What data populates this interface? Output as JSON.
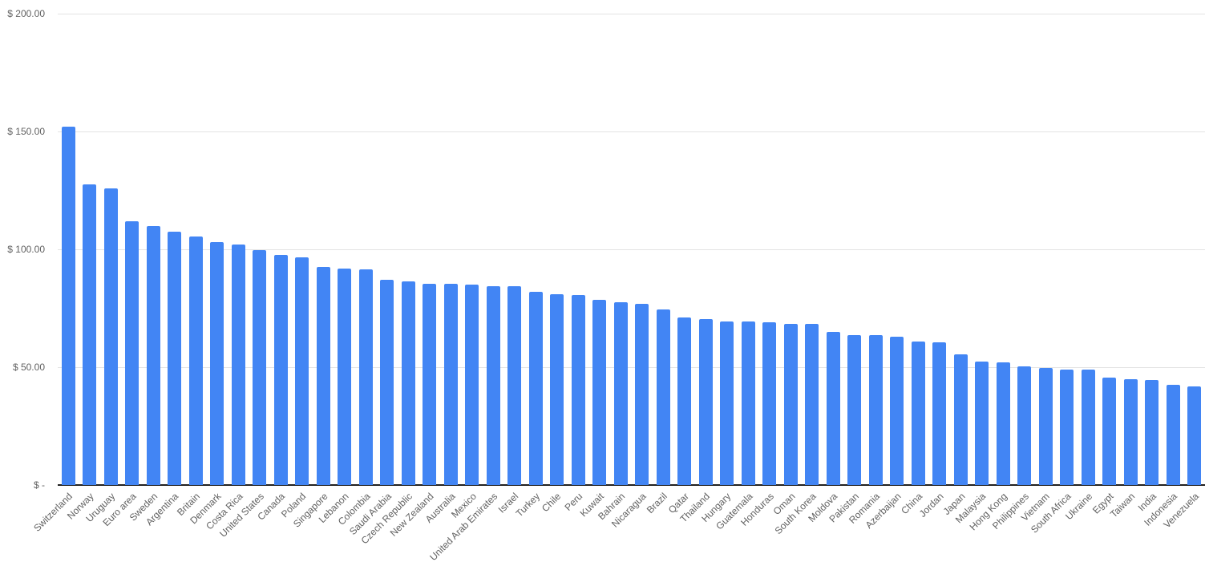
{
  "chart": {
    "background_color": "#ffffff",
    "bar_color": "#4285f4",
    "gridline_color": "#e3e3e3",
    "axis_line_color": "#212121",
    "tick_text_color": "#616161",
    "y_axis_ticks": [
      {
        "label": "$ 200.00",
        "value": 200
      },
      {
        "label": "$ 150.00",
        "value": 150
      },
      {
        "label": "$ 100.00",
        "value": 100
      },
      {
        "label": "$ 50.00",
        "value": 50
      },
      {
        "label": "$ -",
        "value": 0
      }
    ]
  },
  "chart_data": {
    "type": "bar",
    "title": "",
    "xlabel": "",
    "ylabel": "",
    "ylim": [
      0,
      200
    ],
    "grid": true,
    "legend_position": "none",
    "y_tick_labels": [
      "$ 200.00",
      "$ 150.00",
      "$ 100.00",
      "$ 50.00",
      "$ -"
    ],
    "categories": [
      "Switzerland",
      "Norway",
      "Uruguay",
      "Euro area",
      "Sweden",
      "Argentina",
      "Britain",
      "Denmark",
      "Costa Rica",
      "United States",
      "Canada",
      "Poland",
      "Singapore",
      "Lebanon",
      "Colombia",
      "Saudi Arabia",
      "Czech Republic",
      "New Zealand",
      "Australia",
      "Mexico",
      "United Arab Emirates",
      "Israel",
      "Turkey",
      "Chile",
      "Peru",
      "Kuwait",
      "Bahrain",
      "Nicaragua",
      "Brazil",
      "Qatar",
      "Thailand",
      "Hungary",
      "Guatemala",
      "Honduras",
      "Oman",
      "South Korea",
      "Moldova",
      "Pakistan",
      "Romania",
      "Azerbaijan",
      "China",
      "Jordan",
      "Japan",
      "Malaysia",
      "Hong Kong",
      "Philippines",
      "Vietnam",
      "South Africa",
      "Ukraine",
      "Egypt",
      "Taiwan",
      "India",
      "Indonesia",
      "Venezuela"
    ],
    "values": [
      152,
      127.5,
      126,
      112,
      110,
      107.5,
      105.5,
      103,
      102,
      99.5,
      97.5,
      96.5,
      92.5,
      92,
      91.5,
      87,
      86.5,
      85.5,
      85.5,
      85,
      84.5,
      84.5,
      82,
      81,
      80.5,
      78.5,
      77.5,
      77,
      74.5,
      71,
      70.5,
      69.5,
      69.5,
      69,
      68.5,
      68.5,
      65,
      63.5,
      63.5,
      63,
      61,
      60.5,
      55.5,
      52.5,
      52,
      50.5,
      49.5,
      49,
      49,
      45.5,
      45,
      44.5,
      42.5,
      42
    ]
  }
}
